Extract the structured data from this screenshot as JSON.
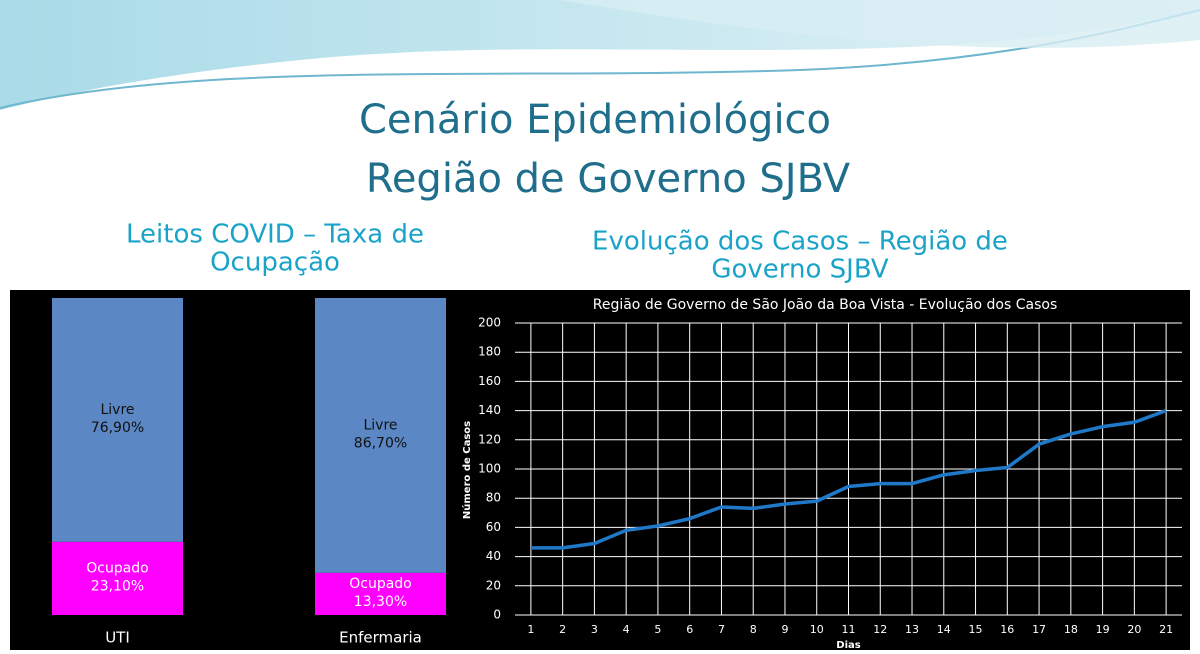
{
  "title_lines": [
    "Cenário Epidemiológico",
    "Região de Governo SJBV"
  ],
  "chart_data": [
    {
      "type": "stacked_bar",
      "heading": [
        "Leitos COVID – Taxa de",
        "Ocupação"
      ],
      "categories": [
        "UTI",
        "Enfermaria"
      ],
      "series": [
        {
          "name": "Ocupado",
          "color": "#ff00ff",
          "values": [
            23.1,
            13.3
          ],
          "value_labels": [
            "23,10%",
            "13,30%"
          ]
        },
        {
          "name": "Livre",
          "color": "#5b87c5",
          "values": [
            76.9,
            86.7
          ],
          "value_labels": [
            "76,90%",
            "86,70%"
          ]
        }
      ],
      "ylim": [
        0,
        100
      ]
    },
    {
      "type": "line",
      "heading": [
        "Evolução dos Casos – Região de",
        "Governo SJBV"
      ],
      "title": "Região de Governo de São João da Boa Vista - Evolução dos Casos",
      "xlabel": "Dias",
      "ylabel": "Número de Casos",
      "x": [
        1,
        2,
        3,
        4,
        5,
        6,
        7,
        8,
        9,
        10,
        11,
        12,
        13,
        14,
        15,
        16,
        17,
        18,
        19,
        20,
        21
      ],
      "values": [
        46,
        46,
        49,
        58,
        61,
        66,
        74,
        73,
        76,
        78,
        88,
        90,
        90,
        96,
        99,
        101,
        117,
        124,
        129,
        132,
        140
      ],
      "color": "#1f78c8",
      "xlim": [
        0.5,
        21.5
      ],
      "xticks": [
        1,
        2,
        3,
        4,
        5,
        6,
        7,
        8,
        9,
        10,
        11,
        12,
        13,
        14,
        15,
        16,
        17,
        18,
        19,
        20,
        21
      ],
      "ylim": [
        0,
        200
      ],
      "yticks": [
        0,
        20,
        40,
        60,
        80,
        100,
        120,
        140,
        160,
        180,
        200
      ],
      "grid": true
    }
  ]
}
